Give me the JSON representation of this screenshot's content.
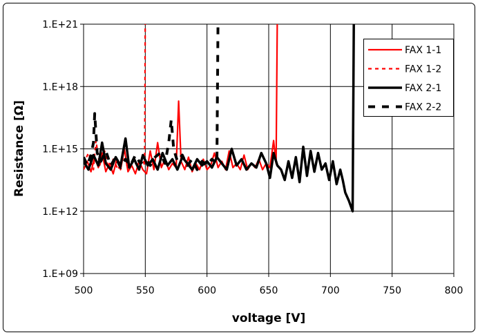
{
  "chart_data": {
    "type": "line",
    "title": "",
    "xlabel": "voltage [V]",
    "ylabel": "Resistance [Ω]",
    "xlim": [
      500,
      800
    ],
    "ylim": [
      1000000000.0,
      1e+21
    ],
    "yscale": "log",
    "y_units_note": "series y values given as log10(Resistance)",
    "xticks": [
      500,
      550,
      600,
      650,
      700,
      750,
      800
    ],
    "xtick_labels": [
      "500",
      "550",
      "600",
      "650",
      "700",
      "750",
      "800"
    ],
    "yticks_log10": [
      9,
      12,
      15,
      18,
      21
    ],
    "ytick_labels": [
      "1.E+09",
      "1.E+12",
      "1.E+15",
      "1.E+18",
      "1.E+21"
    ],
    "grid": true,
    "legend_position": "top-right",
    "series": [
      {
        "name": "FAX 1-1",
        "color": "#ff0000",
        "style": "solid",
        "points": [
          [
            500,
            14.0
          ],
          [
            503,
            14.4
          ],
          [
            506,
            13.9
          ],
          [
            509,
            14.6
          ],
          [
            512,
            14.1
          ],
          [
            515,
            14.8
          ],
          [
            518,
            13.9
          ],
          [
            521,
            14.3
          ],
          [
            524,
            13.8
          ],
          [
            527,
            14.5
          ],
          [
            530,
            14.0
          ],
          [
            533,
            15.0
          ],
          [
            536,
            13.9
          ],
          [
            539,
            14.2
          ],
          [
            542,
            13.8
          ],
          [
            545,
            14.4
          ],
          [
            548,
            14.0
          ],
          [
            551,
            13.8
          ],
          [
            554,
            14.9
          ],
          [
            557,
            14.0
          ],
          [
            560,
            15.3
          ],
          [
            563,
            14.1
          ],
          [
            566,
            14.5
          ],
          [
            569,
            14.0
          ],
          [
            572,
            14.3
          ],
          [
            575,
            14.1
          ],
          [
            577,
            17.3
          ],
          [
            579,
            14.4
          ],
          [
            582,
            14.0
          ],
          [
            585,
            14.6
          ],
          [
            588,
            13.9
          ],
          [
            591,
            14.3
          ],
          [
            594,
            14.0
          ],
          [
            597,
            14.5
          ],
          [
            600,
            14.0
          ],
          [
            603,
            14.2
          ],
          [
            606,
            14.8
          ],
          [
            609,
            14.1
          ],
          [
            612,
            14.4
          ],
          [
            615,
            14.0
          ],
          [
            618,
            14.9
          ],
          [
            621,
            14.1
          ],
          [
            624,
            14.3
          ],
          [
            627,
            14.0
          ],
          [
            630,
            14.7
          ],
          [
            633,
            14.0
          ],
          [
            636,
            14.3
          ],
          [
            639,
            14.1
          ],
          [
            642,
            14.5
          ],
          [
            645,
            14.0
          ],
          [
            648,
            14.3
          ],
          [
            651,
            14.1
          ],
          [
            654,
            15.4
          ],
          [
            656,
            14.3
          ],
          [
            657,
            21.5
          ]
        ]
      },
      {
        "name": "FAX 1-2",
        "color": "#ff0000",
        "style": "dashed",
        "points": [
          [
            500,
            14.3
          ],
          [
            504,
            14.8
          ],
          [
            508,
            14.0
          ],
          [
            510,
            15.4
          ],
          [
            513,
            14.2
          ],
          [
            517,
            14.9
          ],
          [
            520,
            14.1
          ],
          [
            524,
            14.5
          ],
          [
            528,
            14.0
          ],
          [
            532,
            14.6
          ],
          [
            536,
            14.1
          ],
          [
            540,
            14.4
          ],
          [
            544,
            14.2
          ],
          [
            548,
            14.5
          ],
          [
            549.5,
            14.2
          ],
          [
            550,
            21.5
          ]
        ]
      },
      {
        "name": "FAX 2-1",
        "color": "#000000",
        "style": "solid",
        "points": [
          [
            500,
            14.4
          ],
          [
            504,
            14.0
          ],
          [
            508,
            14.7
          ],
          [
            512,
            14.2
          ],
          [
            515,
            15.3
          ],
          [
            518,
            14.3
          ],
          [
            522,
            14.0
          ],
          [
            526,
            14.6
          ],
          [
            530,
            14.2
          ],
          [
            534,
            15.5
          ],
          [
            537,
            14.1
          ],
          [
            541,
            14.5
          ],
          [
            545,
            14.0
          ],
          [
            548,
            14.7
          ],
          [
            552,
            14.2
          ],
          [
            556,
            14.5
          ],
          [
            560,
            14.0
          ],
          [
            564,
            14.8
          ],
          [
            568,
            14.2
          ],
          [
            572,
            14.5
          ],
          [
            576,
            14.0
          ],
          [
            580,
            14.6
          ],
          [
            584,
            14.3
          ],
          [
            588,
            14.0
          ],
          [
            592,
            14.5
          ],
          [
            596,
            14.2
          ],
          [
            600,
            14.4
          ],
          [
            604,
            14.1
          ],
          [
            608,
            14.6
          ],
          [
            612,
            14.3
          ],
          [
            616,
            14.0
          ],
          [
            620,
            15.0
          ],
          [
            624,
            14.2
          ],
          [
            628,
            14.5
          ],
          [
            632,
            14.0
          ],
          [
            636,
            14.3
          ],
          [
            640,
            14.1
          ],
          [
            644,
            14.8
          ],
          [
            648,
            14.3
          ],
          [
            651,
            13.6
          ],
          [
            654,
            14.8
          ],
          [
            657,
            14.2
          ],
          [
            660,
            14.0
          ],
          [
            663,
            13.5
          ],
          [
            666,
            14.4
          ],
          [
            669,
            13.6
          ],
          [
            672,
            14.6
          ],
          [
            675,
            13.4
          ],
          [
            678,
            15.1
          ],
          [
            681,
            13.7
          ],
          [
            684,
            14.9
          ],
          [
            687,
            13.9
          ],
          [
            690,
            14.8
          ],
          [
            693,
            14.0
          ],
          [
            696,
            14.3
          ],
          [
            699,
            13.5
          ],
          [
            702,
            14.4
          ],
          [
            705,
            13.3
          ],
          [
            708,
            14.0
          ],
          [
            710,
            13.5
          ],
          [
            712,
            12.9
          ],
          [
            715,
            12.5
          ],
          [
            718,
            12.0
          ],
          [
            719,
            21.5
          ]
        ]
      },
      {
        "name": "FAX 2-2",
        "color": "#000000",
        "style": "dashed",
        "points": [
          [
            500,
            14.6
          ],
          [
            503,
            14.2
          ],
          [
            506,
            14.7
          ],
          [
            508,
            15.3
          ],
          [
            509,
            16.7
          ],
          [
            511,
            14.8
          ],
          [
            514,
            14.4
          ],
          [
            518,
            14.9
          ],
          [
            522,
            14.2
          ],
          [
            526,
            14.6
          ],
          [
            530,
            14.1
          ],
          [
            534,
            14.5
          ],
          [
            538,
            14.2
          ],
          [
            542,
            14.7
          ],
          [
            546,
            14.3
          ],
          [
            550,
            14.5
          ],
          [
            554,
            14.2
          ],
          [
            558,
            14.6
          ],
          [
            562,
            14.8
          ],
          [
            566,
            14.3
          ],
          [
            569,
            15.3
          ],
          [
            571,
            16.4
          ],
          [
            573,
            15.0
          ],
          [
            576,
            14.4
          ],
          [
            580,
            14.7
          ],
          [
            584,
            14.2
          ],
          [
            588,
            14.5
          ],
          [
            592,
            14.0
          ],
          [
            596,
            14.4
          ],
          [
            600,
            14.2
          ],
          [
            604,
            14.5
          ],
          [
            608,
            14.3
          ],
          [
            609,
            21.5
          ]
        ]
      }
    ]
  }
}
